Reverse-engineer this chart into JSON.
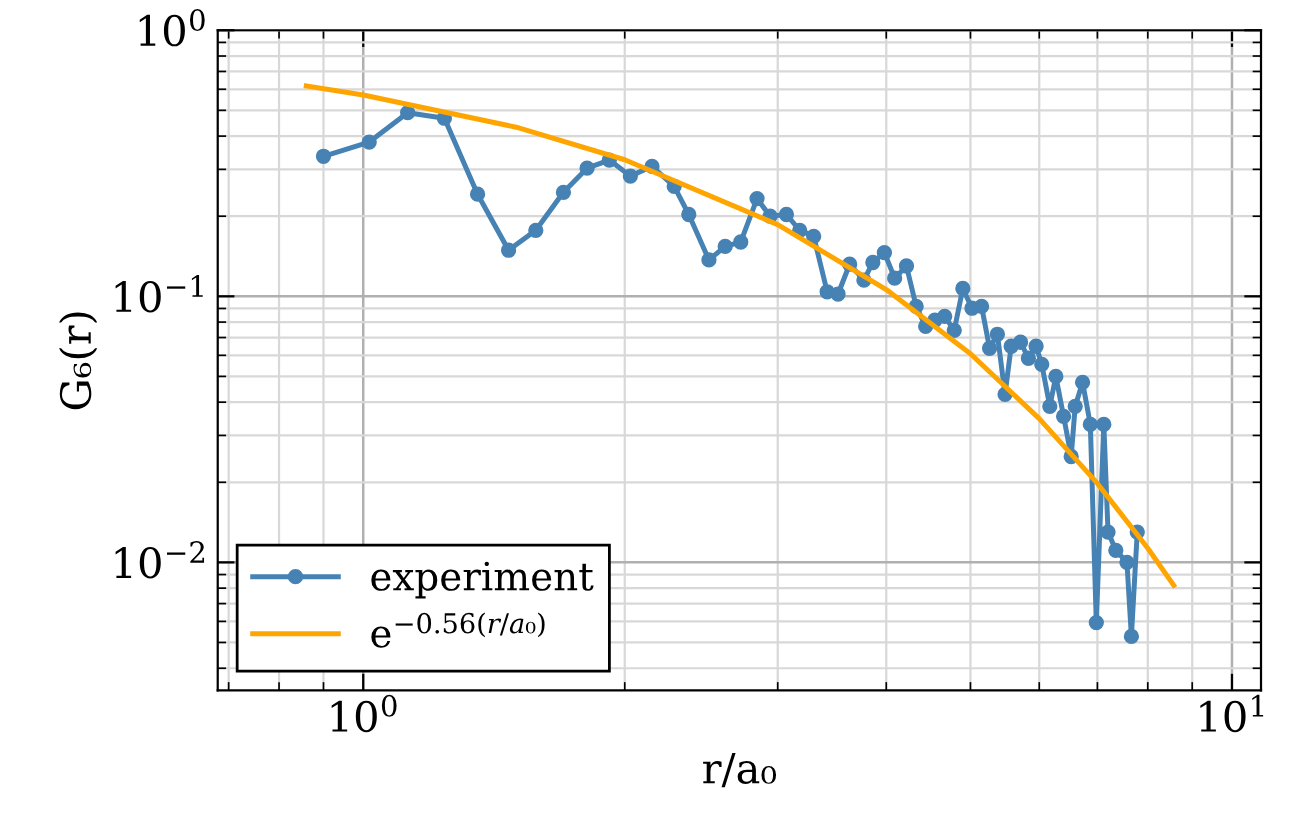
{
  "chart_data": {
    "type": "line",
    "xlabel": "r/a₀",
    "ylabel": "G₆(r)",
    "log": "xy",
    "grid": true,
    "legend": "bottom left",
    "xlim": [
      0.68,
      10.8
    ],
    "ylim": [
      0.0033,
      1
    ],
    "xticks": [
      {
        "value": 1,
        "label": "10$^{0}$"
      },
      {
        "value": 10,
        "label": "10$^{1}$"
      }
    ],
    "yticks": [
      {
        "value": 0.01,
        "label": "10$^{−2}$"
      },
      {
        "value": 0.1,
        "label": "10$^{−1}$"
      },
      {
        "value": 1,
        "label": "10$^{0}$"
      }
    ],
    "series": [
      {
        "name": "experiment",
        "marker": "circle",
        "color": "#4682b4",
        "x": [
          0.9,
          1.016,
          1.125,
          1.24,
          1.354,
          1.47,
          1.58,
          1.7,
          1.81,
          1.92,
          2.03,
          2.15,
          2.28,
          2.37,
          2.5,
          2.61,
          2.72,
          2.84,
          2.94,
          3.07,
          3.18,
          3.3,
          3.42,
          3.52,
          3.63,
          3.77,
          3.86,
          3.98,
          4.09,
          4.22,
          4.33,
          4.44,
          4.55,
          4.67,
          4.79,
          4.9,
          5.02,
          5.15,
          5.26,
          5.37,
          5.48,
          5.57,
          5.71,
          5.83,
          5.95,
          6.04,
          6.17,
          6.27,
          6.4,
          6.53,
          6.6,
          6.73,
          6.87,
          6.98,
          7.12,
          7.2,
          7.35,
          7.57,
          7.66,
          7.78
        ],
        "values": [
          0.336,
          0.38,
          0.49,
          0.467,
          0.242,
          0.149,
          0.177,
          0.246,
          0.303,
          0.325,
          0.283,
          0.308,
          0.259,
          0.203,
          0.137,
          0.154,
          0.16,
          0.233,
          0.2,
          0.203,
          0.177,
          0.168,
          0.104,
          0.102,
          0.132,
          0.115,
          0.134,
          0.146,
          0.117,
          0.13,
          0.0917,
          0.0771,
          0.0813,
          0.0841,
          0.0745,
          0.107,
          0.0902,
          0.0916,
          0.0638,
          0.072,
          0.0428,
          0.0649,
          0.0672,
          0.0585,
          0.0649,
          0.0555,
          0.0386,
          0.05,
          0.0354,
          0.025,
          0.0386,
          0.0475,
          0.033,
          0.00594,
          0.033,
          0.013,
          0.0111,
          0.01,
          0.00527,
          0.013
        ]
      },
      {
        "name": "e$^{−0.56(r/a₀)}$",
        "marker": "none",
        "color": "#ffa500",
        "x": [
          0.86,
          1,
          1.5,
          2,
          3,
          4,
          5,
          6,
          7,
          8,
          8.57
        ],
        "values": [
          0.618,
          0.571,
          0.432,
          0.326,
          0.186,
          0.106,
          0.0608,
          0.0347,
          0.0198,
          0.0113,
          0.0082
        ]
      }
    ]
  }
}
